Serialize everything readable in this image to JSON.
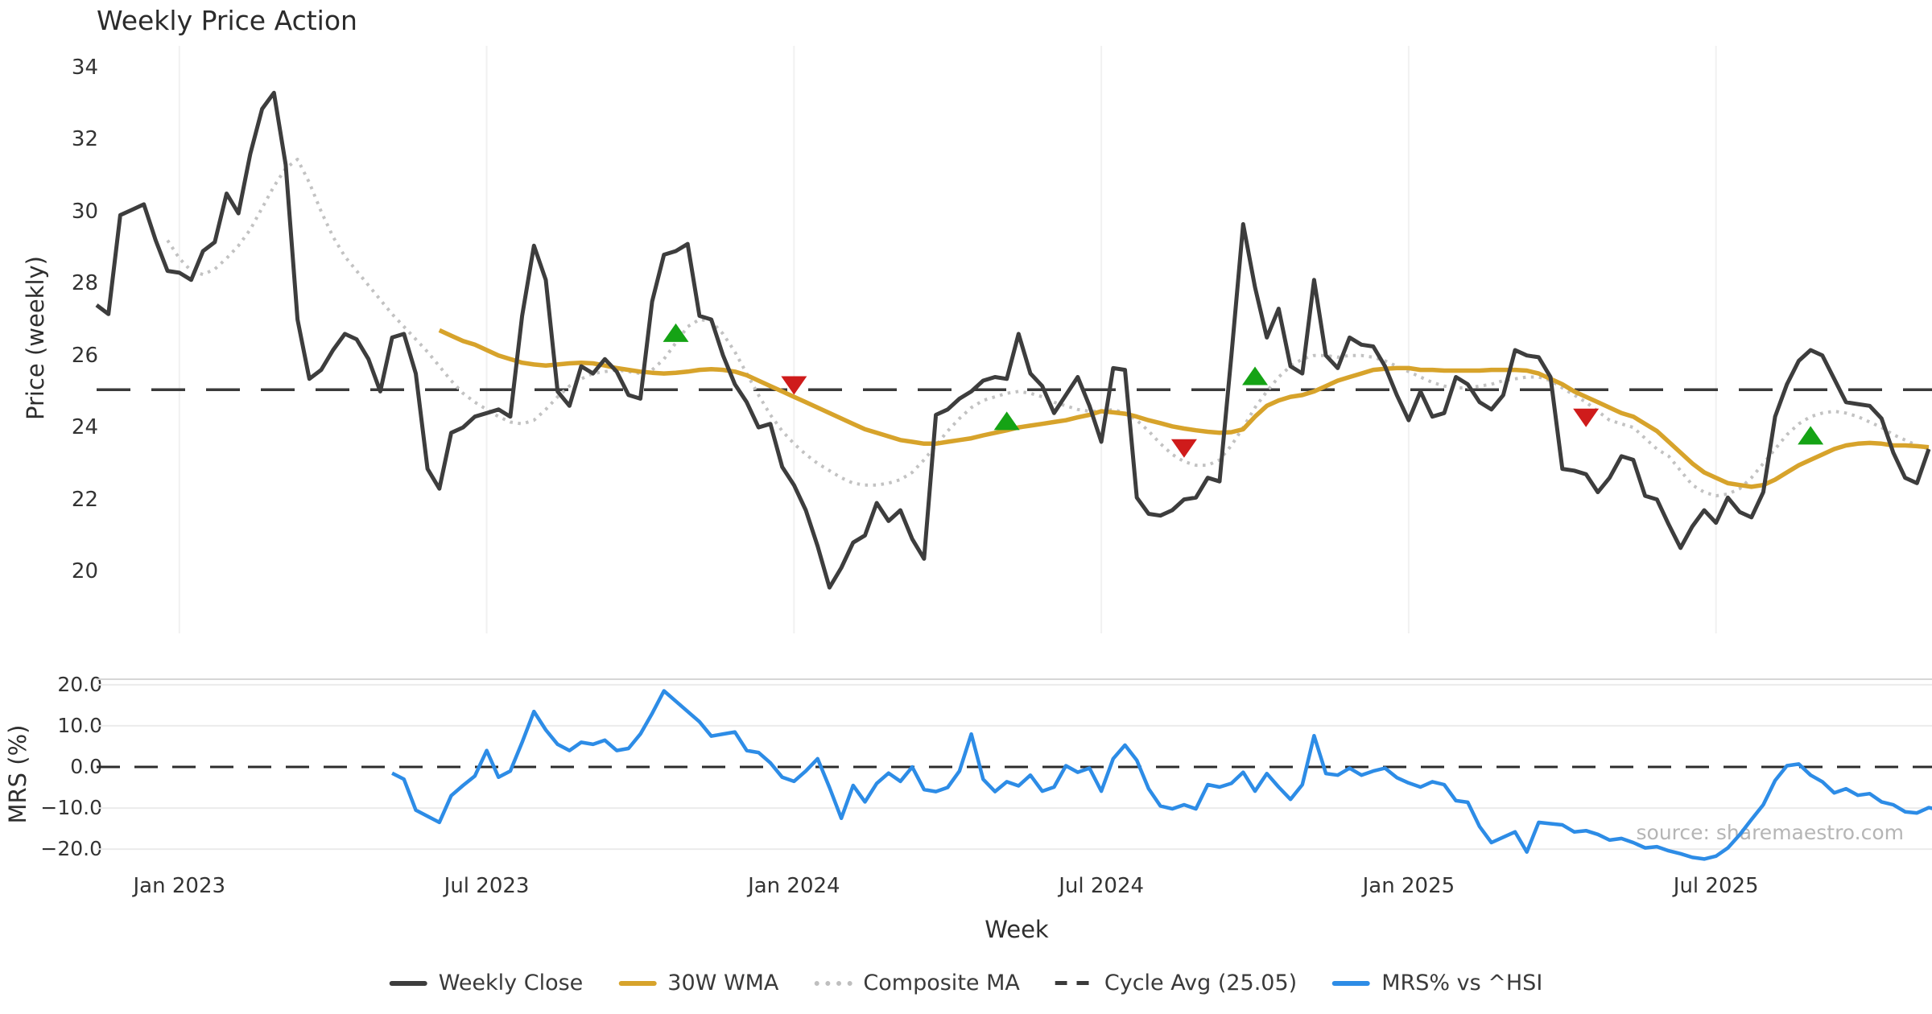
{
  "title": "Weekly Price Action",
  "watermark": "source: sharemaestro.com",
  "price_axis": {
    "label": "Price (weekly)",
    "ticks": [
      "34",
      "32",
      "30",
      "28",
      "26",
      "24",
      "22",
      "20"
    ],
    "tick_values": [
      34,
      32,
      30,
      28,
      26,
      24,
      22,
      20
    ]
  },
  "mrs_axis": {
    "label": "MRS (%)",
    "ticks": [
      "20.0",
      "10.0",
      "0.0",
      "−10.0",
      "−20.0"
    ],
    "tick_values": [
      20,
      10,
      0,
      -10,
      -20
    ]
  },
  "x_axis": {
    "label": "Week",
    "ticks": [
      {
        "label": "Jan 2023",
        "week": 7
      },
      {
        "label": "Jul 2023",
        "week": 33
      },
      {
        "label": "Jan 2024",
        "week": 59
      },
      {
        "label": "Jul 2024",
        "week": 85
      },
      {
        "label": "Jan 2025",
        "week": 111
      },
      {
        "label": "Jul 2025",
        "week": 137
      }
    ]
  },
  "colors": {
    "close": "#3d3d3d",
    "wma": "#d7a32b",
    "composite": "#c2c2c2",
    "cycle": "#3a3a3a",
    "mrs": "#2d8ce6",
    "buy": "#15a315",
    "sell": "#cf1b1b",
    "grid": "#f1f1f1",
    "mrs_grid": "#ebebeb",
    "mrs_spine": "#d6d6d6"
  },
  "legend": {
    "items": [
      {
        "label": "Weekly Close",
        "swatch": "solid",
        "color": "#3d3d3d"
      },
      {
        "label": "30W WMA",
        "swatch": "solid",
        "color": "#d7a32b"
      },
      {
        "label": "Composite MA",
        "swatch": "dotted",
        "color": "#bfbfbf"
      },
      {
        "label": "Cycle Avg (25.05)",
        "swatch": "dashed",
        "color": "#3a3a3a"
      },
      {
        "label": "MRS% vs ^HSI",
        "swatch": "solid",
        "color": "#2d8ce6"
      }
    ]
  },
  "chart_data": [
    {
      "type": "line",
      "panel": "price",
      "title": "Weekly Price Action",
      "xlabel": "Week",
      "ylabel": "Price (weekly)",
      "ylim": [
        18.4,
        34.9
      ],
      "x_is_weekly_index": true,
      "weeks_total": 156,
      "cycle_avg": 25.05,
      "series": [
        {
          "name": "Weekly Close",
          "style": "solid",
          "start_week": 0,
          "values": [
            27.4,
            27.15,
            29.9,
            30.05,
            30.2,
            29.2,
            28.35,
            28.3,
            28.1,
            28.9,
            29.15,
            30.5,
            29.95,
            31.6,
            32.85,
            33.3,
            31.3,
            27.0,
            25.35,
            25.6,
            26.15,
            26.6,
            26.45,
            25.9,
            25.0,
            26.5,
            26.6,
            25.5,
            22.85,
            22.3,
            23.85,
            24.0,
            24.3,
            24.4,
            24.5,
            24.3,
            27.1,
            29.05,
            28.1,
            25.0,
            24.6,
            25.7,
            25.5,
            25.9,
            25.55,
            24.9,
            24.8,
            27.5,
            28.8,
            28.9,
            29.1,
            27.1,
            27.0,
            26.0,
            25.2,
            24.7,
            24.0,
            24.1,
            22.9,
            22.4,
            21.7,
            20.7,
            19.55,
            20.1,
            20.8,
            21.0,
            21.9,
            21.4,
            21.7,
            20.9,
            20.35,
            24.35,
            24.5,
            24.8,
            25.0,
            25.3,
            25.4,
            25.35,
            26.6,
            25.5,
            25.15,
            24.4,
            24.9,
            25.4,
            24.6,
            23.6,
            25.65,
            25.6,
            22.05,
            21.6,
            21.55,
            21.7,
            22.0,
            22.05,
            22.6,
            22.5,
            26.0,
            29.65,
            27.9,
            26.5,
            27.3,
            25.7,
            25.5,
            28.1,
            26.0,
            25.65,
            26.5,
            26.3,
            26.25,
            25.7,
            24.9,
            24.2,
            25.0,
            24.3,
            24.4,
            25.4,
            25.2,
            24.7,
            24.5,
            24.9,
            26.15,
            26.0,
            25.95,
            25.4,
            22.85,
            22.8,
            22.7,
            22.2,
            22.6,
            23.2,
            23.1,
            22.1,
            22.0,
            21.3,
            20.65,
            21.25,
            21.7,
            21.35,
            22.05,
            21.65,
            21.5,
            22.2,
            24.3,
            25.2,
            25.85,
            26.15,
            26.0,
            25.35,
            24.7,
            24.65,
            24.6,
            24.25,
            23.3,
            22.6,
            22.45,
            23.4
          ]
        },
        {
          "name": "30W WMA",
          "style": "solid",
          "start_week": 29,
          "values": [
            26.7,
            26.55,
            26.4,
            26.3,
            26.15,
            26.0,
            25.9,
            25.8,
            25.75,
            25.72,
            25.75,
            25.78,
            25.8,
            25.78,
            25.72,
            25.65,
            25.6,
            25.55,
            25.52,
            25.5,
            25.52,
            25.55,
            25.6,
            25.62,
            25.6,
            25.55,
            25.45,
            25.3,
            25.15,
            25.0,
            24.85,
            24.7,
            24.55,
            24.4,
            24.25,
            24.1,
            23.95,
            23.85,
            23.75,
            23.65,
            23.6,
            23.55,
            23.55,
            23.6,
            23.65,
            23.7,
            23.78,
            23.85,
            23.92,
            24.0,
            24.05,
            24.1,
            24.15,
            24.2,
            24.28,
            24.35,
            24.45,
            24.42,
            24.38,
            24.3,
            24.2,
            24.12,
            24.03,
            23.97,
            23.92,
            23.88,
            23.85,
            23.87,
            23.95,
            24.3,
            24.6,
            24.75,
            24.85,
            24.9,
            25.0,
            25.15,
            25.3,
            25.4,
            25.5,
            25.6,
            25.63,
            25.65,
            25.65,
            25.6,
            25.6,
            25.58,
            25.58,
            25.58,
            25.58,
            25.6,
            25.6,
            25.6,
            25.58,
            25.5,
            25.35,
            25.2,
            25.0,
            24.85,
            24.7,
            24.55,
            24.4,
            24.3,
            24.1,
            23.9,
            23.6,
            23.3,
            23.0,
            22.75,
            22.6,
            22.45,
            22.4,
            22.35,
            22.4,
            22.55,
            22.75,
            22.95,
            23.1,
            23.25,
            23.4,
            23.5,
            23.55,
            23.57,
            23.55,
            23.5,
            23.5,
            23.48,
            23.45
          ]
        },
        {
          "name": "Composite MA",
          "style": "dotted",
          "start_week": 6,
          "values": [
            29.2,
            28.7,
            28.35,
            28.25,
            28.4,
            28.7,
            29.05,
            29.5,
            30.1,
            30.7,
            31.2,
            31.45,
            30.8,
            30.0,
            29.3,
            28.75,
            28.35,
            27.95,
            27.55,
            27.15,
            26.8,
            26.45,
            26.1,
            25.7,
            25.3,
            24.95,
            24.7,
            24.5,
            24.3,
            24.15,
            24.1,
            24.2,
            24.5,
            24.85,
            25.15,
            25.35,
            25.5,
            25.55,
            25.6,
            25.55,
            25.5,
            25.6,
            25.9,
            26.35,
            26.8,
            27.0,
            26.95,
            26.6,
            26.1,
            25.5,
            24.9,
            24.35,
            23.9,
            23.55,
            23.25,
            23.0,
            22.8,
            22.6,
            22.45,
            22.4,
            22.4,
            22.45,
            22.55,
            22.75,
            23.1,
            23.5,
            23.9,
            24.25,
            24.55,
            24.75,
            24.85,
            24.95,
            25.0,
            24.95,
            24.85,
            24.7,
            24.6,
            24.5,
            24.45,
            24.45,
            24.5,
            24.4,
            24.2,
            23.9,
            23.55,
            23.25,
            23.05,
            22.95,
            22.95,
            23.1,
            23.5,
            24.0,
            24.55,
            25.0,
            25.4,
            25.7,
            25.9,
            26.0,
            26.0,
            25.95,
            26.0,
            26.0,
            25.95,
            25.85,
            25.7,
            25.55,
            25.4,
            25.25,
            25.15,
            25.1,
            25.1,
            25.15,
            25.2,
            25.3,
            25.35,
            25.4,
            25.4,
            25.3,
            25.1,
            24.9,
            24.7,
            24.45,
            24.2,
            24.1,
            24.0,
            23.7,
            23.4,
            23.2,
            22.8,
            22.4,
            22.2,
            22.1,
            22.15,
            22.3,
            22.6,
            23.0,
            23.4,
            23.8,
            24.1,
            24.3,
            24.4,
            24.45,
            24.4,
            24.3,
            24.15,
            24.0,
            23.8,
            23.65,
            23.5,
            23.4
          ]
        }
      ],
      "signals": {
        "buy": [
          {
            "week": 49,
            "price": 26.6
          },
          {
            "week": 77,
            "price": 24.15
          },
          {
            "week": 98,
            "price": 25.4
          },
          {
            "week": 145,
            "price": 23.75
          }
        ],
        "sell": [
          {
            "week": 59,
            "price": 25.2
          },
          {
            "week": 92,
            "price": 23.45
          },
          {
            "week": 126,
            "price": 24.3
          }
        ]
      }
    },
    {
      "type": "line",
      "panel": "mrs",
      "ylabel": "MRS (%)",
      "ylim": [
        -24.5,
        21.5
      ],
      "zero_line": "dashed",
      "series": [
        {
          "name": "MRS% vs ^HSI",
          "style": "solid",
          "start_week": 25,
          "values": [
            -1.5,
            -3.0,
            -10.5,
            -12.0,
            -13.5,
            -7.0,
            -4.5,
            -2.2,
            4.0,
            -2.5,
            -1.0,
            6.0,
            13.5,
            9.0,
            5.5,
            4.0,
            6.0,
            5.5,
            6.5,
            4.0,
            4.5,
            8.0,
            13.0,
            18.5,
            16.0,
            13.5,
            11.0,
            7.5,
            8.0,
            8.5,
            4.0,
            3.5,
            1.0,
            -2.5,
            -3.5,
            -1.0,
            2.0,
            -5.0,
            -12.5,
            -4.5,
            -8.5,
            -4.0,
            -1.5,
            -3.5,
            0.0,
            -5.5,
            -6.0,
            -5.0,
            -1.0,
            8.0,
            -3.0,
            -6.0,
            -3.6,
            -4.6,
            -2.0,
            -5.9,
            -4.9,
            0.3,
            -1.3,
            -0.3,
            -5.9,
            2.0,
            5.3,
            1.6,
            -5.3,
            -9.5,
            -10.2,
            -9.2,
            -10.2,
            -4.3,
            -4.9,
            -4.0,
            -1.3,
            -5.9,
            -1.6,
            -4.9,
            -7.9,
            -4.3,
            7.6,
            -1.6,
            -2.0,
            -0.3,
            -2.0,
            -1.0,
            -0.3,
            -2.6,
            -3.9,
            -4.9,
            -3.6,
            -4.3,
            -8.2,
            -8.6,
            -14.5,
            -18.4,
            -17.1,
            -15.8,
            -20.7,
            -13.5,
            -13.8,
            -14.1,
            -15.8,
            -15.5,
            -16.4,
            -17.8,
            -17.4,
            -18.4,
            -19.7,
            -19.4,
            -20.4,
            -21.1,
            -22.0,
            -22.4,
            -21.7,
            -19.7,
            -16.5,
            -12.8,
            -9.2,
            -3.3,
            0.3,
            0.7,
            -2.0,
            -3.6,
            -6.3,
            -5.3,
            -6.9,
            -6.5,
            -8.5,
            -9.2,
            -10.9,
            -11.2,
            -9.9,
            -10.5,
            -10.9,
            -10.2
          ]
        }
      ]
    }
  ]
}
